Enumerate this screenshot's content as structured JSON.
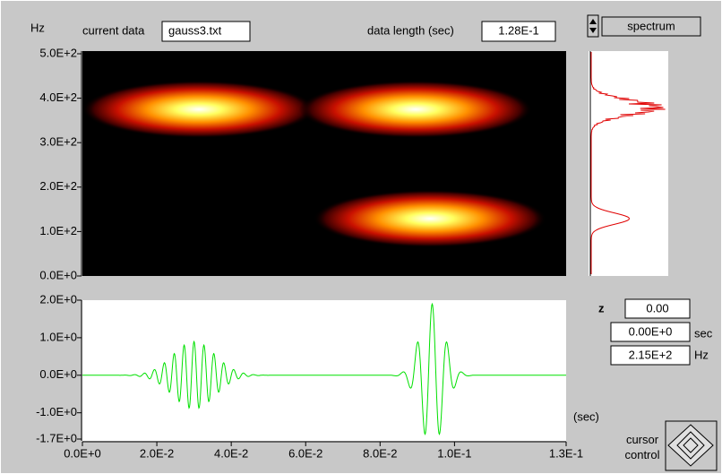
{
  "header": {
    "hz_label": "Hz",
    "current_data_label": "current data",
    "current_data": "gauss3.txt",
    "data_length_label": "data length (sec)",
    "data_length": "1.28E-1",
    "view_mode": "spectrum"
  },
  "spectrogram": {
    "ylim": [
      0,
      500
    ],
    "yticks": [
      {
        "value": 0,
        "label": "0.0E+0"
      },
      {
        "value": 100,
        "label": "1.0E+2"
      },
      {
        "value": 200,
        "label": "2.0E+2"
      },
      {
        "value": 300,
        "label": "3.0E+2"
      },
      {
        "value": 400,
        "label": "4.0E+2"
      },
      {
        "value": 500,
        "label": "5.0E+2"
      }
    ]
  },
  "waveform": {
    "ylim": [
      -1.7,
      2.0
    ],
    "yticks": [
      {
        "value": 2.0,
        "label": "2.0E+0"
      },
      {
        "value": 1.0,
        "label": "1.0E+0"
      },
      {
        "value": 0,
        "label": "0.0E+0"
      },
      {
        "value": -1.0,
        "label": "-1.0E+0"
      },
      {
        "value": -1.7,
        "label": "-1.7E+0"
      }
    ],
    "xlim": [
      0,
      0.13
    ],
    "xticks": [
      {
        "value": 0,
        "label": "0.0E+0"
      },
      {
        "value": 0.02,
        "label": "2.0E-2"
      },
      {
        "value": 0.04,
        "label": "4.0E-2"
      },
      {
        "value": 0.06,
        "label": "6.0E-2"
      },
      {
        "value": 0.08,
        "label": "8.0E-2"
      },
      {
        "value": 0.1,
        "label": "1.0E-1"
      },
      {
        "value": 0.13,
        "label": "1.3E-1"
      }
    ],
    "x_unit": "(sec)"
  },
  "cursor": {
    "z_label": "z",
    "z": "0.00",
    "time": "0.00E+0",
    "time_unit": "sec",
    "freq": "2.15E+2",
    "freq_unit": "Hz",
    "control_label": "cursor control"
  }
}
